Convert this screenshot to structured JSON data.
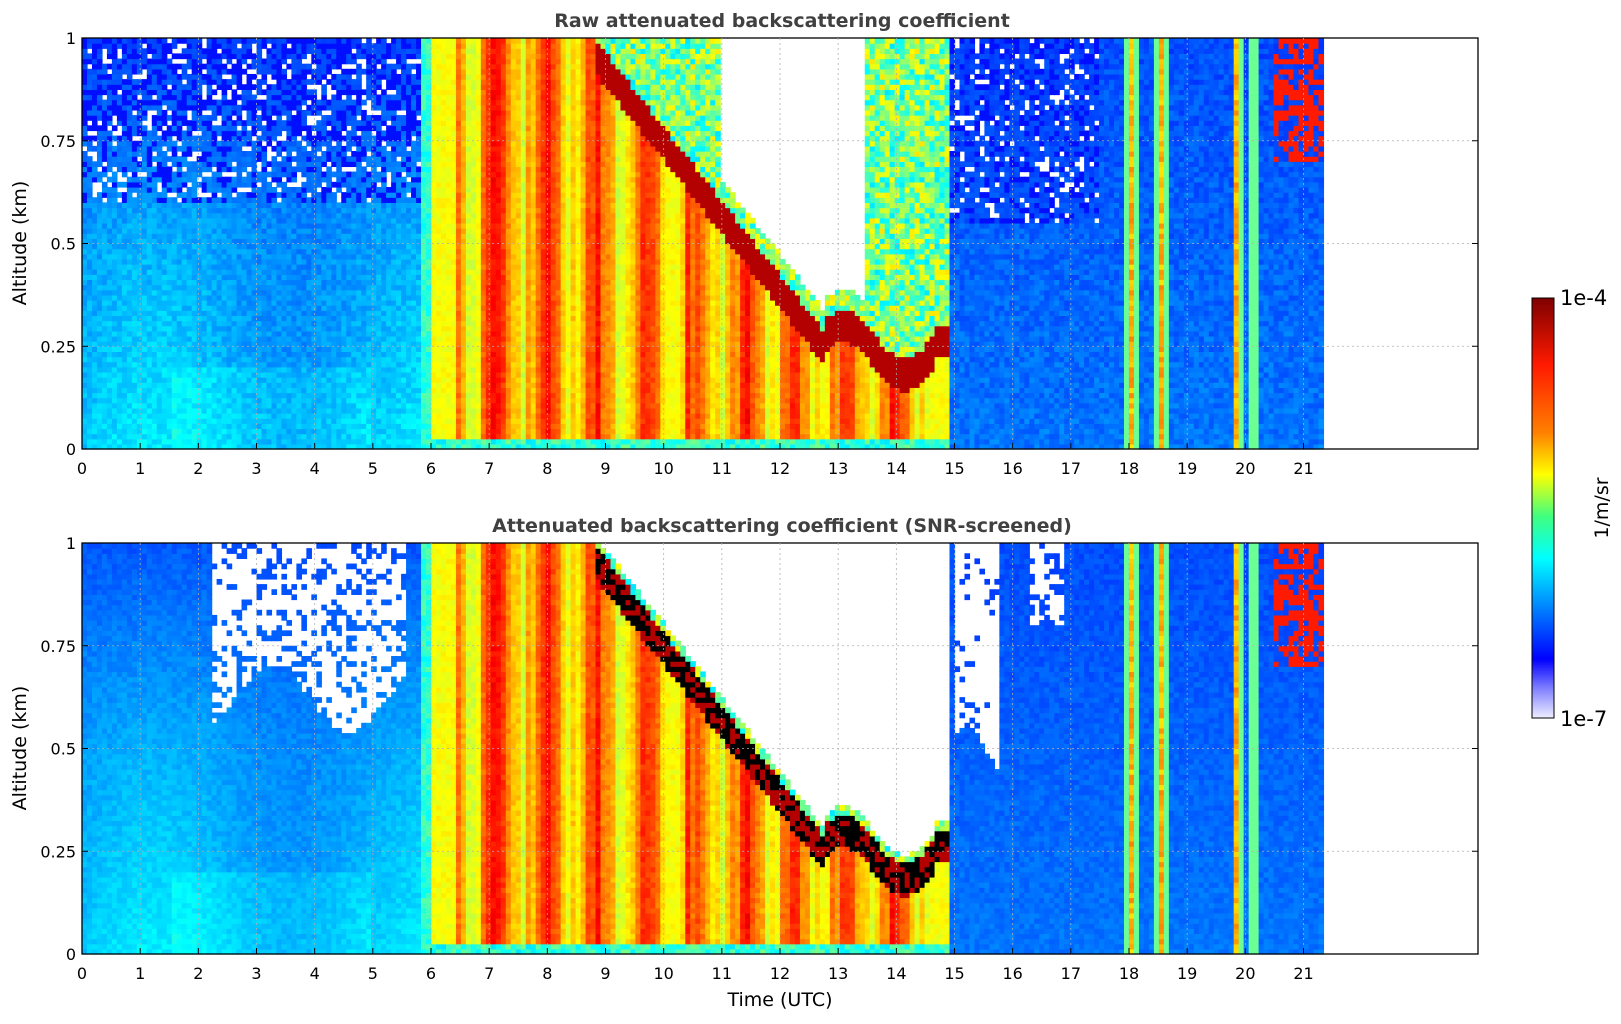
{
  "chart_data": [
    {
      "type": "heatmap",
      "title": "Raw attenuated backscattering coefficient",
      "ylabel": "Altitude (km)",
      "xlabel": "",
      "xlim": [
        0,
        24
      ],
      "ylim": [
        0,
        1
      ],
      "xticks": [
        "0",
        "1",
        "2",
        "3",
        "4",
        "5",
        "6",
        "7",
        "8",
        "9",
        "10",
        "11",
        "12",
        "13",
        "14",
        "15",
        "16",
        "17",
        "18",
        "19",
        "20",
        "21"
      ],
      "yticks": [
        "0",
        "0.25",
        "0.5",
        "0.75",
        "1"
      ],
      "data_extent_hours": [
        0,
        21.3
      ],
      "grid": true,
      "colorscale": "jet (log)",
      "features": [
        {
          "range_h": [
            0,
            5.8
          ],
          "desc": "clear-sky aerosol layer, noisy above 0.5 km"
        },
        {
          "range_h": [
            5.9,
            14.9
          ],
          "desc": "dense low cloud / fog, strong backscatter"
        },
        {
          "range_h": [
            15,
            21.3
          ],
          "desc": "clear with isolated cloud columns"
        }
      ]
    },
    {
      "type": "heatmap",
      "title": "Attenuated backscattering coefficient (SNR-screened)",
      "ylabel": "Altitude (km)",
      "xlabel": "Time (UTC)",
      "xlim": [
        0,
        24
      ],
      "ylim": [
        0,
        1
      ],
      "xticks": [
        "0",
        "1",
        "2",
        "3",
        "4",
        "5",
        "6",
        "7",
        "8",
        "9",
        "10",
        "11",
        "12",
        "13",
        "14",
        "15",
        "16",
        "17",
        "18",
        "19",
        "20",
        "21"
      ],
      "yticks": [
        "0",
        "0.25",
        "0.5",
        "0.75",
        "1"
      ],
      "data_extent_hours": [
        0,
        21.3
      ],
      "grid": true,
      "colorscale": "jet (log)"
    }
  ],
  "colorbar": {
    "max_label": "1e-4",
    "min_label": "1e-7",
    "unit_label": "1/m/sr",
    "stops": [
      "#7f0000",
      "#ff0000",
      "#ff8000",
      "#ffff00",
      "#80ff80",
      "#00ffff",
      "#0080ff",
      "#0000ff",
      "#e8e8ff"
    ]
  }
}
